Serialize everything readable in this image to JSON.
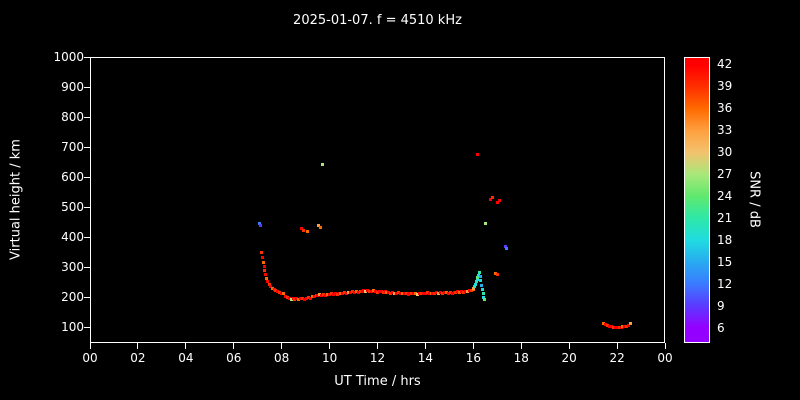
{
  "title": "2025-01-07. f = 4510 kHz",
  "chart_data": {
    "type": "scatter",
    "title": "2025-01-07. f = 4510 kHz",
    "xlabel": "UT Time / hrs",
    "ylabel": "Virtual height / km",
    "colorbar_label": "SNR / dB",
    "background": "#000000",
    "frame_color": "#ffffff",
    "xlim": [
      0,
      24
    ],
    "ylim": [
      47,
      1000
    ],
    "xtick_hours": [
      0,
      2,
      4,
      6,
      8,
      10,
      12,
      14,
      16,
      18,
      20,
      22,
      24
    ],
    "xtick_labels": [
      "00",
      "02",
      "04",
      "06",
      "08",
      "10",
      "12",
      "14",
      "16",
      "18",
      "20",
      "22",
      "00"
    ],
    "yticks": [
      100,
      200,
      300,
      400,
      500,
      600,
      700,
      800,
      900,
      1000
    ],
    "colorbar_ticks": [
      42,
      39,
      36,
      33,
      30,
      27,
      24,
      21,
      18,
      15,
      12,
      9,
      6
    ],
    "colorbar_range": [
      4,
      43
    ],
    "colormap": [
      {
        "v": 42,
        "c": "#ff0000"
      },
      {
        "v": 39,
        "c": "#ff3000"
      },
      {
        "v": 36,
        "c": "#ff6a00"
      },
      {
        "v": 33,
        "c": "#ffa040"
      },
      {
        "v": 30,
        "c": "#f2c26e"
      },
      {
        "v": 27,
        "c": "#a8e87a"
      },
      {
        "v": 24,
        "c": "#5fe86e"
      },
      {
        "v": 21,
        "c": "#2ee8a8"
      },
      {
        "v": 18,
        "c": "#20dce0"
      },
      {
        "v": 15,
        "c": "#28aaf0"
      },
      {
        "v": 12,
        "c": "#3a7bff"
      },
      {
        "v": 9,
        "c": "#5a3aff"
      },
      {
        "v": 6,
        "c": "#9400ff"
      }
    ],
    "points": [
      [
        7.02,
        450,
        12
      ],
      [
        7.06,
        443,
        9
      ],
      [
        7.1,
        352,
        39
      ],
      [
        7.14,
        336,
        42
      ],
      [
        7.18,
        318,
        36
      ],
      [
        7.22,
        304,
        42
      ],
      [
        7.26,
        291,
        39
      ],
      [
        7.3,
        278,
        42
      ],
      [
        7.34,
        265,
        36
      ],
      [
        7.38,
        256,
        42
      ],
      [
        7.44,
        247,
        39
      ],
      [
        7.5,
        240,
        42
      ],
      [
        7.57,
        233,
        36
      ],
      [
        7.64,
        228,
        42
      ],
      [
        7.71,
        224,
        39
      ],
      [
        7.78,
        222,
        42
      ],
      [
        7.86,
        219,
        39
      ],
      [
        7.95,
        217,
        42
      ],
      [
        8.03,
        214,
        36
      ],
      [
        8.11,
        205,
        42
      ],
      [
        8.19,
        201,
        39
      ],
      [
        8.27,
        199,
        42
      ],
      [
        8.35,
        196,
        27
      ],
      [
        8.43,
        198,
        42
      ],
      [
        8.51,
        196,
        39
      ],
      [
        8.59,
        199,
        42
      ],
      [
        8.67,
        197,
        36
      ],
      [
        8.75,
        200,
        42
      ],
      [
        8.83,
        198,
        39
      ],
      [
        8.91,
        196,
        42
      ],
      [
        8.99,
        199,
        42
      ],
      [
        9.07,
        202,
        39
      ],
      [
        9.15,
        200,
        42
      ],
      [
        9.23,
        204,
        36
      ],
      [
        9.31,
        207,
        42
      ],
      [
        9.39,
        210,
        39
      ],
      [
        9.47,
        208,
        42
      ],
      [
        9.55,
        211,
        33
      ],
      [
        9.63,
        209,
        42
      ],
      [
        9.71,
        212,
        39
      ],
      [
        9.79,
        210,
        42
      ],
      [
        9.87,
        213,
        36
      ],
      [
        9.95,
        211,
        42
      ],
      [
        10.03,
        214,
        39
      ],
      [
        10.11,
        212,
        42
      ],
      [
        10.19,
        215,
        42
      ],
      [
        10.27,
        213,
        39
      ],
      [
        10.35,
        216,
        42
      ],
      [
        10.43,
        214,
        36
      ],
      [
        10.51,
        217,
        42
      ],
      [
        10.59,
        219,
        39
      ],
      [
        10.67,
        217,
        42
      ],
      [
        10.75,
        220,
        33
      ],
      [
        10.83,
        218,
        42
      ],
      [
        10.91,
        221,
        39
      ],
      [
        10.99,
        219,
        42
      ],
      [
        11.07,
        222,
        36
      ],
      [
        11.15,
        220,
        42
      ],
      [
        11.23,
        223,
        39
      ],
      [
        11.31,
        221,
        42
      ],
      [
        11.39,
        224,
        42
      ],
      [
        11.47,
        222,
        30
      ],
      [
        11.55,
        225,
        42
      ],
      [
        11.63,
        223,
        39
      ],
      [
        11.71,
        221,
        42
      ],
      [
        11.79,
        224,
        36
      ],
      [
        11.87,
        222,
        42
      ],
      [
        11.95,
        220,
        39
      ],
      [
        12.03,
        223,
        42
      ],
      [
        12.11,
        221,
        42
      ],
      [
        12.19,
        219,
        39
      ],
      [
        12.27,
        222,
        42
      ],
      [
        12.35,
        220,
        36
      ],
      [
        12.43,
        218,
        42
      ],
      [
        12.51,
        216,
        39
      ],
      [
        12.59,
        219,
        42
      ],
      [
        12.67,
        217,
        33
      ],
      [
        12.75,
        215,
        42
      ],
      [
        12.83,
        218,
        39
      ],
      [
        12.91,
        216,
        42
      ],
      [
        12.99,
        214,
        36
      ],
      [
        13.07,
        217,
        42
      ],
      [
        13.15,
        215,
        39
      ],
      [
        13.23,
        213,
        42
      ],
      [
        13.31,
        216,
        42
      ],
      [
        13.39,
        214,
        39
      ],
      [
        13.47,
        217,
        42
      ],
      [
        13.55,
        215,
        36
      ],
      [
        13.63,
        213,
        30
      ],
      [
        13.71,
        216,
        42
      ],
      [
        13.79,
        214,
        39
      ],
      [
        13.87,
        217,
        42
      ],
      [
        13.95,
        215,
        42
      ],
      [
        14.03,
        218,
        39
      ],
      [
        14.11,
        216,
        42
      ],
      [
        14.19,
        214,
        36
      ],
      [
        14.27,
        217,
        42
      ],
      [
        14.35,
        215,
        39
      ],
      [
        14.43,
        218,
        42
      ],
      [
        14.51,
        216,
        33
      ],
      [
        14.59,
        219,
        42
      ],
      [
        14.67,
        217,
        39
      ],
      [
        14.75,
        220,
        42
      ],
      [
        14.83,
        218,
        36
      ],
      [
        14.91,
        216,
        42
      ],
      [
        14.99,
        219,
        39
      ],
      [
        15.07,
        217,
        42
      ],
      [
        15.15,
        220,
        42
      ],
      [
        15.23,
        218,
        39
      ],
      [
        15.31,
        221,
        42
      ],
      [
        15.39,
        219,
        36
      ],
      [
        15.47,
        222,
        42
      ],
      [
        15.55,
        220,
        39
      ],
      [
        15.63,
        223,
        42
      ],
      [
        15.71,
        221,
        33
      ],
      [
        15.79,
        224,
        42
      ],
      [
        15.87,
        226,
        39
      ],
      [
        15.95,
        229,
        36
      ],
      [
        15.98,
        232,
        33
      ],
      [
        16.02,
        238,
        21
      ],
      [
        16.05,
        246,
        18
      ],
      [
        16.08,
        254,
        21
      ],
      [
        16.11,
        262,
        18
      ],
      [
        16.14,
        270,
        24
      ],
      [
        16.17,
        277,
        18
      ],
      [
        16.2,
        284,
        21
      ],
      [
        16.24,
        272,
        15
      ],
      [
        16.27,
        258,
        18
      ],
      [
        16.3,
        243,
        15
      ],
      [
        16.33,
        228,
        18
      ],
      [
        16.36,
        214,
        21
      ],
      [
        16.39,
        203,
        18
      ],
      [
        16.42,
        197,
        24
      ],
      [
        8.8,
        432,
        42
      ],
      [
        8.86,
        427,
        39
      ],
      [
        9.02,
        421,
        36
      ],
      [
        9.5,
        441,
        33
      ],
      [
        9.56,
        436,
        36
      ],
      [
        9.68,
        645,
        27
      ],
      [
        16.13,
        680,
        42
      ],
      [
        16.45,
        450,
        27
      ],
      [
        16.68,
        528,
        42
      ],
      [
        16.74,
        534,
        39
      ],
      [
        16.9,
        283,
        36
      ],
      [
        16.97,
        278,
        39
      ],
      [
        16.98,
        520,
        42
      ],
      [
        17.04,
        525,
        42
      ],
      [
        17.28,
        372,
        9
      ],
      [
        17.34,
        364,
        12
      ],
      [
        21.4,
        116,
        36
      ],
      [
        21.48,
        111,
        42
      ],
      [
        21.56,
        108,
        39
      ],
      [
        21.64,
        106,
        42
      ],
      [
        21.72,
        104,
        42
      ],
      [
        21.8,
        103,
        39
      ],
      [
        21.88,
        102,
        42
      ],
      [
        21.96,
        102,
        42
      ],
      [
        22.04,
        102,
        39
      ],
      [
        22.12,
        103,
        42
      ],
      [
        22.2,
        104,
        36
      ],
      [
        22.28,
        105,
        42
      ],
      [
        22.36,
        107,
        39
      ],
      [
        22.44,
        110,
        42
      ],
      [
        22.52,
        114,
        33
      ]
    ]
  }
}
